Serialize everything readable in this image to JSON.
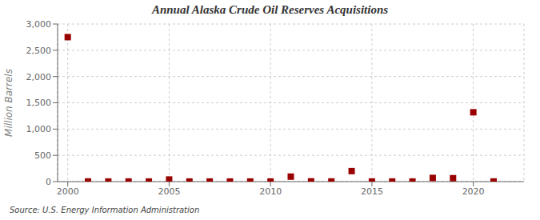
{
  "chart_data": {
    "type": "scatter",
    "title": "Annual Alaska Crude Oil Reserves Acquisitions",
    "ylabel": "Million Barrels",
    "annotations": [
      "Source: U.S. Energy Information Administration"
    ],
    "x": [
      2000,
      2001,
      2002,
      2003,
      2004,
      2005,
      2006,
      2007,
      2008,
      2009,
      2010,
      2011,
      2012,
      2013,
      2014,
      2015,
      2016,
      2017,
      2018,
      2019,
      2020,
      2021
    ],
    "values": [
      2750,
      3,
      2,
      2,
      2,
      40,
      2,
      2,
      2,
      2,
      2,
      95,
      5,
      3,
      200,
      2,
      2,
      2,
      70,
      65,
      1320,
      3
    ],
    "color": "#990000",
    "marker": "square",
    "xlim": [
      1999.5,
      2022.5
    ],
    "xticks": [
      2000,
      2005,
      2010,
      2015,
      2020
    ],
    "ylim": [
      0,
      3000
    ],
    "yticks": [
      0,
      500,
      {
        "value": 1000,
        "label": "1,000"
      },
      {
        "value": 1500,
        "label": "1,500"
      },
      {
        "value": 2000,
        "label": "2,000"
      },
      {
        "value": 2500,
        "label": "2,500"
      },
      {
        "value": 3000,
        "label": "3,000"
      }
    ],
    "grid": true
  }
}
